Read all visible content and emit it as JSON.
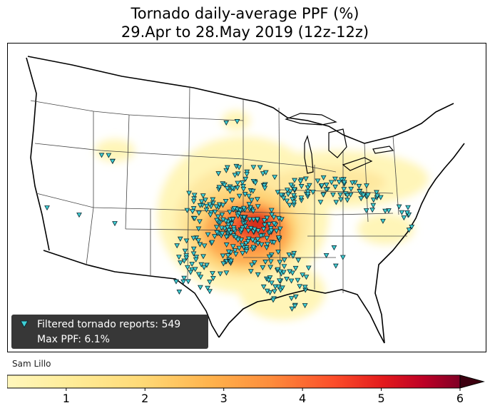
{
  "title": {
    "line1": "Tornado daily-average PPF (%)",
    "line2": "29.Apr to 28.May 2019 (12z-12z)"
  },
  "legend": {
    "reports_label": "Filtered tornado reports: 549",
    "max_label": "Max PPF: 6.1%"
  },
  "credit": "Sam Lillo",
  "colorbar": {
    "min": 0.25,
    "max": 6,
    "extend": "max",
    "ticks": [
      "1",
      "2",
      "3",
      "4",
      "5",
      "6"
    ],
    "colors": [
      "#fff7bc",
      "#feeb96",
      "#fed976",
      "#feb24c",
      "#fd8d3c",
      "#fc4e2a",
      "#e31a1c",
      "#bd0026",
      "#800026",
      "#3d0010"
    ]
  },
  "colors": {
    "marker_fill": "#3fd0d6",
    "marker_edge": "#0b2a33",
    "border": "#000000"
  }
}
